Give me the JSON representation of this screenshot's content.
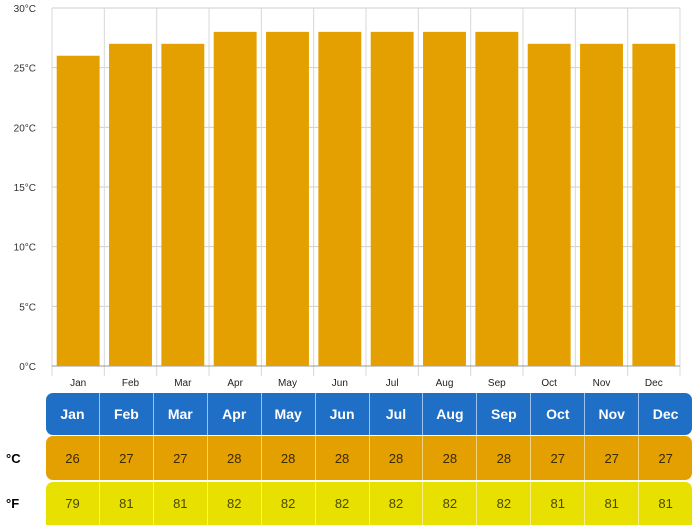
{
  "chart_data": {
    "type": "bar",
    "categories": [
      "Jan",
      "Feb",
      "Mar",
      "Apr",
      "May",
      "Jun",
      "Jul",
      "Aug",
      "Sep",
      "Oct",
      "Nov",
      "Dec"
    ],
    "values": [
      26,
      27,
      27,
      28,
      28,
      28,
      28,
      28,
      28,
      27,
      27,
      27
    ],
    "y_ticks": [
      "0°C",
      "5°C",
      "10°C",
      "15°C",
      "20°C",
      "25°C",
      "30°C"
    ],
    "ylim": [
      0,
      30
    ],
    "grid": true,
    "bar_color": "#e3a000"
  },
  "table": {
    "months": [
      "Jan",
      "Feb",
      "Mar",
      "Apr",
      "May",
      "Jun",
      "Jul",
      "Aug",
      "Sep",
      "Oct",
      "Nov",
      "Dec"
    ],
    "celsius_label": "°C",
    "celsius": [
      "26",
      "27",
      "27",
      "28",
      "28",
      "28",
      "28",
      "28",
      "28",
      "27",
      "27",
      "27"
    ],
    "fahrenheit_label": "°F",
    "fahrenheit": [
      "79",
      "81",
      "81",
      "82",
      "82",
      "82",
      "82",
      "82",
      "82",
      "81",
      "81",
      "81"
    ]
  },
  "colors": {
    "month_row": "#1f6fc6",
    "celsius_row": "#e3a000",
    "fahrenheit_row": "#e8e000"
  }
}
